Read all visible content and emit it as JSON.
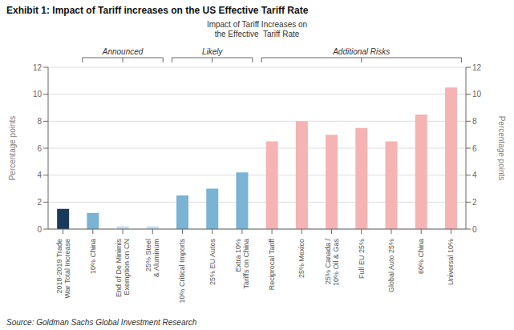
{
  "chart_data": {
    "type": "bar",
    "title": "Exhibit 1: Impact of Tariff increases on the US Effective Tariff Rate",
    "source": "Source: Goldman Sachs Global Investment Research",
    "categories": [
      "2018-2019 Trade\nWar Total Increase",
      "10% China",
      "End of De Minimis\nExemption on CN",
      "25% Steel\n& Aluminum",
      "10% Critical Imports",
      "25% EU Autos",
      "Extra 10%\nTariffs on China",
      "Reciprocal Tariff",
      "25% Mexico",
      "25% Canada /\n10% Oil & Gas",
      "Full EU 25%",
      "Global Auto 25%",
      "60% China",
      "Universal 10%"
    ],
    "values": [
      1.5,
      1.2,
      0.2,
      0.2,
      2.5,
      3.0,
      4.2,
      6.5,
      8.0,
      7.0,
      7.5,
      6.5,
      8.5,
      10.5
    ],
    "colors": [
      "#1a3a5c",
      "#7ab3d3",
      "#c5dced",
      "#c5dced",
      "#7ab3d3",
      "#7ab3d3",
      "#7ab3d3",
      "#f5b3b3",
      "#f5b3b3",
      "#f5b3b3",
      "#f5b3b3",
      "#f5b3b3",
      "#f5b3b3",
      "#f5b3b3"
    ],
    "ylabel": "Percentage points",
    "y2label": "Percentage points",
    "ylim": [
      0,
      12
    ],
    "yticks": [
      0,
      2,
      4,
      6,
      8,
      10,
      12
    ],
    "y2lim": [
      0,
      12
    ],
    "y2ticks": [
      0,
      2,
      4,
      6,
      8,
      10,
      12
    ],
    "grid": true,
    "annotations": [
      {
        "text": "Impact of Tariff Increases on\nthe Effective  Tariff Rate"
      },
      {
        "text": "Announced",
        "from": "10% China",
        "to": "25% Steel\n& Aluminum"
      },
      {
        "text": "Likely",
        "from": "10% Critical Imports",
        "to": "Extra 10%\nTariffs on China"
      },
      {
        "text": "Additional Risks",
        "from": "Reciprocal Tariff",
        "to": "Universal 10%"
      }
    ]
  }
}
